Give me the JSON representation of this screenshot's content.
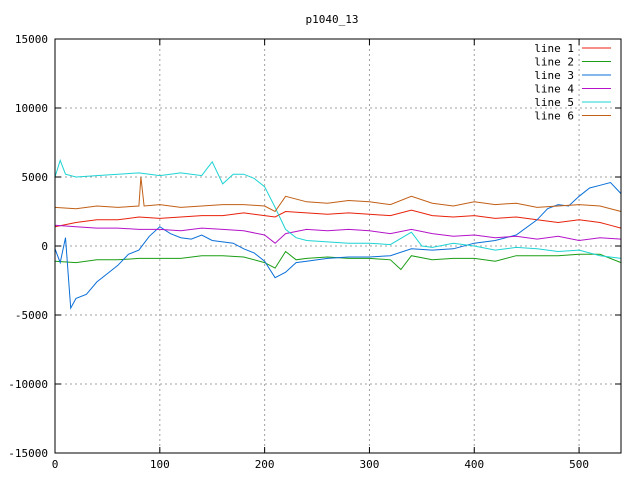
{
  "chart_data": {
    "type": "line",
    "title": "p1040_13",
    "xlabel": "",
    "ylabel": "",
    "xlim": [
      0,
      540
    ],
    "ylim": [
      -15000,
      15000
    ],
    "xticks": [
      0,
      100,
      200,
      300,
      400,
      500
    ],
    "yticks": [
      -15000,
      -10000,
      -5000,
      0,
      5000,
      10000,
      15000
    ],
    "grid": true,
    "legend_position": "top-right",
    "series": [
      {
        "name": "line 1",
        "color": "#e8210b",
        "points": [
          [
            0,
            1400
          ],
          [
            20,
            1700
          ],
          [
            40,
            1900
          ],
          [
            60,
            1900
          ],
          [
            80,
            2100
          ],
          [
            100,
            2000
          ],
          [
            120,
            2100
          ],
          [
            140,
            2200
          ],
          [
            160,
            2200
          ],
          [
            180,
            2400
          ],
          [
            200,
            2200
          ],
          [
            210,
            2100
          ],
          [
            220,
            2500
          ],
          [
            240,
            2400
          ],
          [
            260,
            2300
          ],
          [
            280,
            2400
          ],
          [
            300,
            2300
          ],
          [
            320,
            2200
          ],
          [
            340,
            2600
          ],
          [
            360,
            2200
          ],
          [
            380,
            2100
          ],
          [
            400,
            2200
          ],
          [
            420,
            2000
          ],
          [
            440,
            2100
          ],
          [
            460,
            1900
          ],
          [
            480,
            1700
          ],
          [
            500,
            1900
          ],
          [
            520,
            1700
          ],
          [
            530,
            1500
          ],
          [
            540,
            1300
          ]
        ]
      },
      {
        "name": "line 2",
        "color": "#1b9e15",
        "points": [
          [
            0,
            -1100
          ],
          [
            20,
            -1200
          ],
          [
            40,
            -1000
          ],
          [
            60,
            -1000
          ],
          [
            80,
            -900
          ],
          [
            100,
            -900
          ],
          [
            120,
            -900
          ],
          [
            140,
            -700
          ],
          [
            160,
            -700
          ],
          [
            180,
            -800
          ],
          [
            200,
            -1200
          ],
          [
            210,
            -1600
          ],
          [
            220,
            -400
          ],
          [
            230,
            -1000
          ],
          [
            240,
            -900
          ],
          [
            260,
            -800
          ],
          [
            280,
            -900
          ],
          [
            300,
            -900
          ],
          [
            320,
            -1000
          ],
          [
            330,
            -1700
          ],
          [
            340,
            -700
          ],
          [
            360,
            -1000
          ],
          [
            380,
            -900
          ],
          [
            400,
            -900
          ],
          [
            420,
            -1100
          ],
          [
            440,
            -700
          ],
          [
            460,
            -700
          ],
          [
            480,
            -700
          ],
          [
            500,
            -600
          ],
          [
            520,
            -600
          ],
          [
            540,
            -1200
          ]
        ]
      },
      {
        "name": "line 3",
        "color": "#0a6fd8",
        "points": [
          [
            0,
            -200
          ],
          [
            5,
            -1200
          ],
          [
            10,
            600
          ],
          [
            15,
            -4500
          ],
          [
            20,
            -3800
          ],
          [
            30,
            -3500
          ],
          [
            40,
            -2600
          ],
          [
            50,
            -2000
          ],
          [
            60,
            -1400
          ],
          [
            70,
            -600
          ],
          [
            80,
            -300
          ],
          [
            90,
            700
          ],
          [
            100,
            1400
          ],
          [
            110,
            900
          ],
          [
            120,
            600
          ],
          [
            130,
            500
          ],
          [
            140,
            800
          ],
          [
            150,
            400
          ],
          [
            160,
            300
          ],
          [
            170,
            200
          ],
          [
            180,
            -200
          ],
          [
            190,
            -500
          ],
          [
            200,
            -1100
          ],
          [
            210,
            -2300
          ],
          [
            220,
            -1900
          ],
          [
            230,
            -1200
          ],
          [
            240,
            -1100
          ],
          [
            260,
            -900
          ],
          [
            280,
            -800
          ],
          [
            300,
            -800
          ],
          [
            320,
            -700
          ],
          [
            340,
            -200
          ],
          [
            360,
            -300
          ],
          [
            380,
            -200
          ],
          [
            400,
            200
          ],
          [
            420,
            400
          ],
          [
            440,
            800
          ],
          [
            460,
            1900
          ],
          [
            470,
            2700
          ],
          [
            480,
            3000
          ],
          [
            490,
            2900
          ],
          [
            500,
            3600
          ],
          [
            510,
            4200
          ],
          [
            520,
            4400
          ],
          [
            530,
            4600
          ],
          [
            540,
            3800
          ]
        ]
      },
      {
        "name": "line 4",
        "color": "#b413c9",
        "points": [
          [
            0,
            1500
          ],
          [
            20,
            1400
          ],
          [
            40,
            1300
          ],
          [
            60,
            1300
          ],
          [
            80,
            1200
          ],
          [
            100,
            1200
          ],
          [
            120,
            1100
          ],
          [
            140,
            1300
          ],
          [
            160,
            1200
          ],
          [
            180,
            1100
          ],
          [
            200,
            800
          ],
          [
            210,
            200
          ],
          [
            220,
            900
          ],
          [
            240,
            1200
          ],
          [
            260,
            1100
          ],
          [
            280,
            1200
          ],
          [
            300,
            1100
          ],
          [
            320,
            900
          ],
          [
            340,
            1200
          ],
          [
            360,
            900
          ],
          [
            380,
            700
          ],
          [
            400,
            800
          ],
          [
            420,
            600
          ],
          [
            440,
            700
          ],
          [
            460,
            500
          ],
          [
            480,
            700
          ],
          [
            500,
            400
          ],
          [
            520,
            600
          ],
          [
            540,
            500
          ]
        ]
      },
      {
        "name": "line 5",
        "color": "#1ed3d3",
        "points": [
          [
            0,
            5000
          ],
          [
            5,
            6200
          ],
          [
            10,
            5200
          ],
          [
            20,
            5000
          ],
          [
            40,
            5100
          ],
          [
            60,
            5200
          ],
          [
            80,
            5300
          ],
          [
            100,
            5100
          ],
          [
            120,
            5300
          ],
          [
            140,
            5100
          ],
          [
            150,
            6100
          ],
          [
            160,
            4500
          ],
          [
            170,
            5200
          ],
          [
            180,
            5200
          ],
          [
            190,
            4900
          ],
          [
            200,
            4300
          ],
          [
            210,
            2800
          ],
          [
            220,
            1200
          ],
          [
            230,
            600
          ],
          [
            240,
            400
          ],
          [
            260,
            300
          ],
          [
            280,
            200
          ],
          [
            300,
            200
          ],
          [
            320,
            100
          ],
          [
            340,
            1000
          ],
          [
            350,
            0
          ],
          [
            360,
            -100
          ],
          [
            380,
            200
          ],
          [
            400,
            0
          ],
          [
            420,
            -300
          ],
          [
            440,
            -100
          ],
          [
            460,
            -200
          ],
          [
            480,
            -400
          ],
          [
            500,
            -300
          ],
          [
            520,
            -700
          ],
          [
            540,
            -900
          ]
        ]
      },
      {
        "name": "line 6",
        "color": "#c15f16",
        "points": [
          [
            0,
            2800
          ],
          [
            20,
            2700
          ],
          [
            40,
            2900
          ],
          [
            60,
            2800
          ],
          [
            80,
            2900
          ],
          [
            82,
            5000
          ],
          [
            85,
            2900
          ],
          [
            100,
            3000
          ],
          [
            120,
            2800
          ],
          [
            140,
            2900
          ],
          [
            160,
            3000
          ],
          [
            180,
            3000
          ],
          [
            200,
            2900
          ],
          [
            210,
            2500
          ],
          [
            220,
            3600
          ],
          [
            240,
            3200
          ],
          [
            260,
            3100
          ],
          [
            280,
            3300
          ],
          [
            300,
            3200
          ],
          [
            320,
            3000
          ],
          [
            340,
            3600
          ],
          [
            360,
            3100
          ],
          [
            380,
            2900
          ],
          [
            400,
            3200
          ],
          [
            420,
            3000
          ],
          [
            440,
            3100
          ],
          [
            460,
            2800
          ],
          [
            480,
            2900
          ],
          [
            500,
            3000
          ],
          [
            520,
            2900
          ],
          [
            540,
            2500
          ]
        ]
      }
    ]
  }
}
